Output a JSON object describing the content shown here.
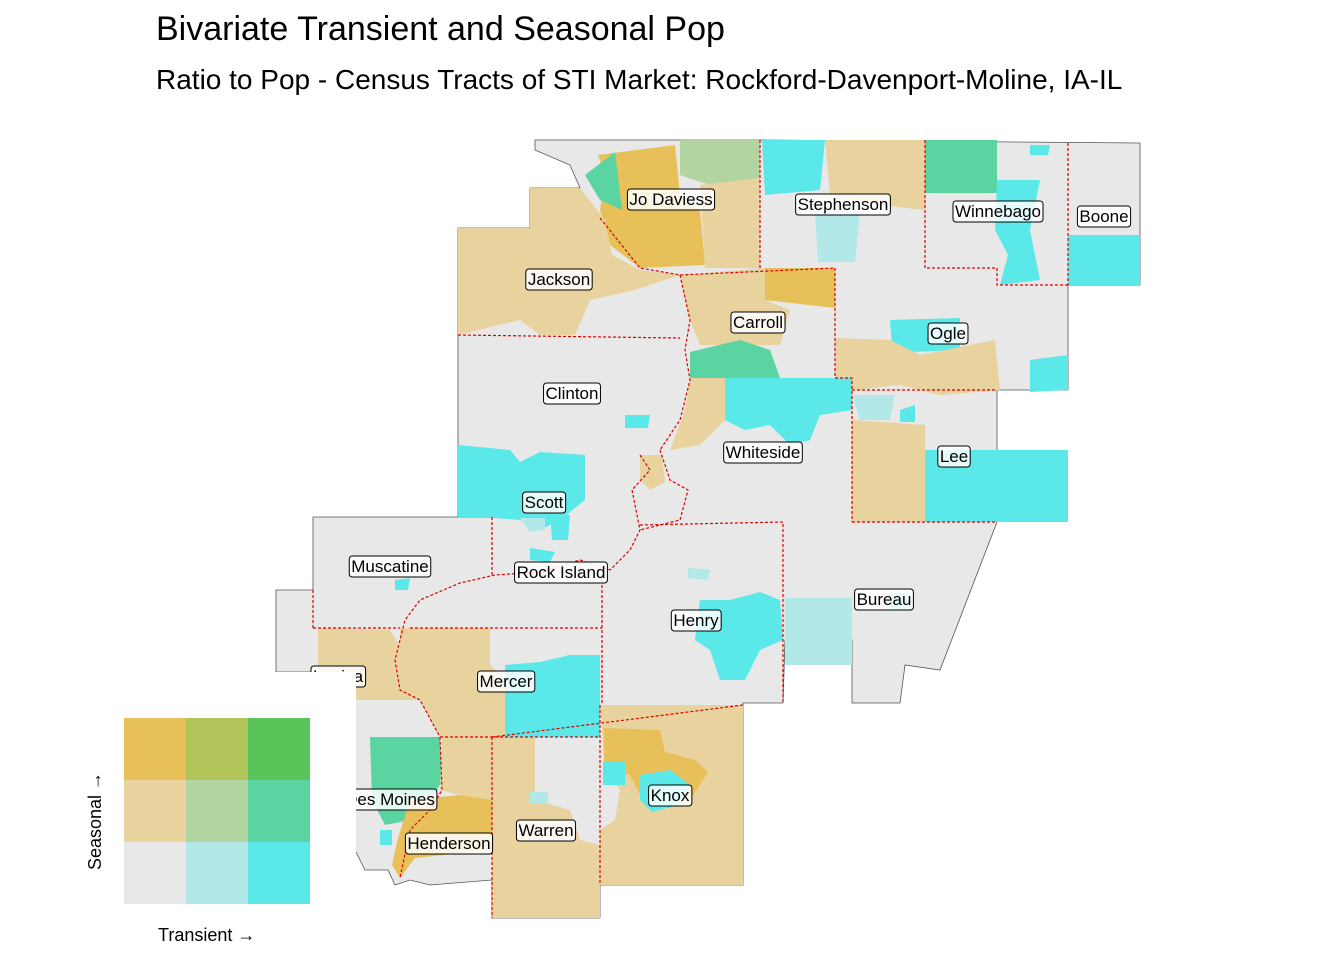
{
  "title": "Bivariate Transient and Seasonal Pop",
  "subtitle": "Ratio to Pop - Census Tracts of STI Market: Rockford-Davenport-Moline, IA-IL",
  "palette": {
    "low_low": "#e8e8e8",
    "low_mid": "#e8d29e",
    "low_high": "#e8c05a",
    "mid_low": "#b2e8e8",
    "mid_mid": "#b2d4a0",
    "mid_high": "#b0c45a",
    "high_low": "#5ae8e8",
    "high_mid": "#5ad4a0",
    "high_high": "#5ac45a",
    "county_border": "#e00000"
  },
  "legend": {
    "x_label": "Transient →",
    "y_label": "Seasonal →",
    "grid": [
      [
        "low_high",
        "mid_high",
        "high_high"
      ],
      [
        "low_mid",
        "mid_mid",
        "high_mid"
      ],
      [
        "low_low",
        "mid_low",
        "high_low"
      ]
    ]
  },
  "counties": [
    {
      "name": "Jo Daviess"
    },
    {
      "name": "Stephenson"
    },
    {
      "name": "Winnebago"
    },
    {
      "name": "Boone"
    },
    {
      "name": "Jackson"
    },
    {
      "name": "Carroll"
    },
    {
      "name": "Ogle"
    },
    {
      "name": "Clinton"
    },
    {
      "name": "Whiteside"
    },
    {
      "name": "Lee"
    },
    {
      "name": "Scott"
    },
    {
      "name": "Muscatine"
    },
    {
      "name": "Rock Island"
    },
    {
      "name": "Bureau"
    },
    {
      "name": "Henry"
    },
    {
      "name": "Mercer"
    },
    {
      "name": "Louisa"
    },
    {
      "name": "Knox"
    },
    {
      "name": "Des Moines"
    },
    {
      "name": "Warren"
    },
    {
      "name": "Henderson"
    }
  ]
}
